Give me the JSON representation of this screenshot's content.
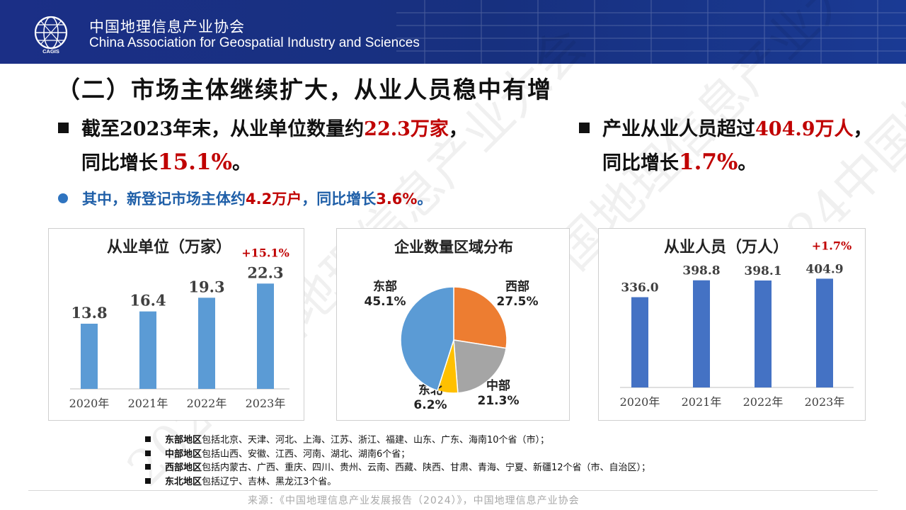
{
  "header": {
    "logo_text": "CAGIS",
    "org_cn": "中国地理信息产业协会",
    "org_en": "China Association for Geospatial Industry and Sciences",
    "bg_color": "#1b2f86"
  },
  "title": "（二）市场主体继续扩大，从业人员稳中有增",
  "bullets": {
    "units": {
      "l1_pre": "截至2023年末，从业单位数量约",
      "l1_val": "22.3万家",
      "l1_post": "，",
      "l2_pre": "同比增长",
      "l2_val": "15.1%",
      "l2_post": "。"
    },
    "staff": {
      "l1_pre": "产业从业人员超过",
      "l1_val": "404.9万人",
      "l1_post": "，",
      "l2_pre": "同比增长",
      "l2_val": "1.7%",
      "l2_post": "。"
    },
    "sub": {
      "pre": "其中，新登记市场主体约",
      "val": "4.2万户",
      "mid": "，同比增长",
      "val2": "3.6%",
      "post": "。"
    }
  },
  "chart_data": [
    {
      "type": "bar",
      "title": "从业单位（万家）",
      "categories": [
        "2020年",
        "2021年",
        "2022年",
        "2023年"
      ],
      "values": [
        13.8,
        16.4,
        19.3,
        22.3
      ],
      "labels": [
        "13.8",
        "16.4",
        "19.3",
        "22.3"
      ],
      "ylim": [
        0,
        30
      ],
      "growth_label": "+15.1%",
      "bar_color": "#5b9bd5"
    },
    {
      "type": "pie",
      "title": "企业数量区域分布",
      "slices": [
        {
          "name": "西部",
          "value": 27.5,
          "label": "27.5%",
          "color": "#ed7d31"
        },
        {
          "name": "中部",
          "value": 21.3,
          "label": "21.3%",
          "color": "#a5a5a5"
        },
        {
          "name": "东北",
          "value": 6.2,
          "label": "6.2%",
          "color": "#ffc000"
        },
        {
          "name": "东部",
          "value": 45.1,
          "label": "45.1%",
          "color": "#5b9bd5"
        }
      ]
    },
    {
      "type": "bar",
      "title": "从业人员（万人）",
      "categories": [
        "2020年",
        "2021年",
        "2022年",
        "2023年"
      ],
      "values": [
        336.0,
        398.8,
        398.1,
        404.9
      ],
      "labels": [
        "336.0",
        "398.8",
        "398.1",
        "404.9"
      ],
      "ylim": [
        0,
        580
      ],
      "growth_label": "+1.7%",
      "bar_color": "#4472c4"
    }
  ],
  "notes": [
    {
      "region": "东部地区",
      "text": "包括北京、天津、河北、上海、江苏、浙江、福建、山东、广东、海南10个省（市）；"
    },
    {
      "region": "中部地区",
      "text": "包括山西、安徽、江西、河南、湖北、湖南6个省；"
    },
    {
      "region": "西部地区",
      "text": "包括内蒙古、广西、重庆、四川、贵州、云南、西藏、陕西、甘肃、青海、宁夏、新疆12个省（市、自治区）；"
    },
    {
      "region": "东北地区",
      "text": "包括辽宁、吉林、黑龙江3个省。"
    }
  ],
  "source": "来源：《中国地理信息产业发展报告（2024）》，中国地理信息产业协会",
  "watermark": "2024中国地理信息产业大会"
}
